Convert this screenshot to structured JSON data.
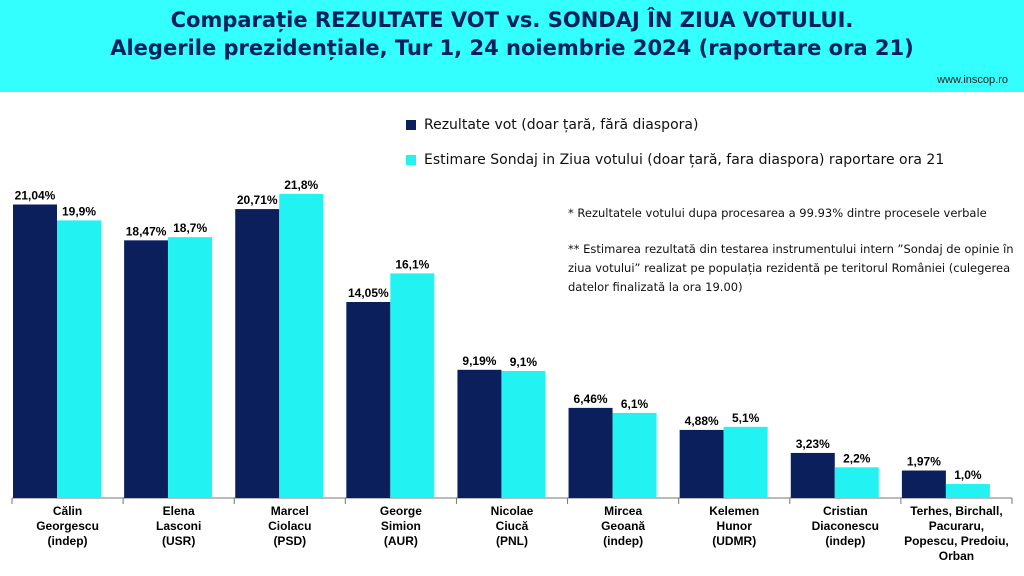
{
  "header": {
    "title_line1": "Comparație REZULTATE VOT vs. SONDAJ ÎN ZIUA VOTULUI.",
    "title_line2": "Alegerile prezidențiale, Tur 1, 24 noiembrie 2024 (raportare ora 21)",
    "source": "www.inscop.ro"
  },
  "notes": {
    "note1": "* Rezultatele votului dupa procesarea a 99.93% dintre procesele verbale",
    "note2": "** Estimarea rezultată din testarea instrumentului intern ”Sondaj de opinie în ziua votului” realizat pe populația rezidentă pe teritorul României (culegerea datelor finalizată la ora 19.00)"
  },
  "colors": {
    "header_bg": "#33ffff",
    "title": "#002060",
    "series_vote": "#0a1f5c",
    "series_poll": "#22f2f2"
  },
  "chart_data": {
    "type": "bar",
    "categories": [
      [
        "Călin",
        "Georgescu",
        "(indep)"
      ],
      [
        "Elena",
        "Lasconi",
        "(USR)"
      ],
      [
        "Marcel",
        "Ciolacu",
        "(PSD)"
      ],
      [
        "George",
        "Simion",
        "(AUR)"
      ],
      [
        "Nicolae",
        "Ciucă",
        "(PNL)"
      ],
      [
        "Mircea",
        "Geoană",
        "(indep)"
      ],
      [
        "Kelemen",
        "Hunor",
        "(UDMR)"
      ],
      [
        "Cristian",
        "Diaconescu",
        "(indep)"
      ],
      [
        "Terhes, Birchall,",
        "Pacuraru,",
        "Popescu, Predoiu,",
        "Orban"
      ]
    ],
    "series": [
      {
        "name": "Rezultate vot (doar țară, fără diaspora)",
        "values": [
          21.04,
          18.47,
          20.71,
          14.05,
          9.19,
          6.46,
          4.88,
          3.23,
          1.97
        ],
        "labels": [
          "21,04%",
          "18,47%",
          "20,71%",
          "14,05%",
          "9,19%",
          "6,46%",
          "4,88%",
          "3,23%",
          "1,97%"
        ]
      },
      {
        "name": "Estimare Sondaj in Ziua votului (doar țară, fara diaspora) raportare ora 21",
        "values": [
          19.9,
          18.7,
          21.8,
          16.1,
          9.1,
          6.1,
          5.1,
          2.2,
          1.0
        ],
        "labels": [
          "19,9%",
          "18,7%",
          "21,8%",
          "16,1%",
          "9,1%",
          "6,1%",
          "5,1%",
          "2,2%",
          "1,0%"
        ]
      }
    ],
    "ylim": [
      0,
      22
    ],
    "legend": "top-right",
    "grid": false
  }
}
